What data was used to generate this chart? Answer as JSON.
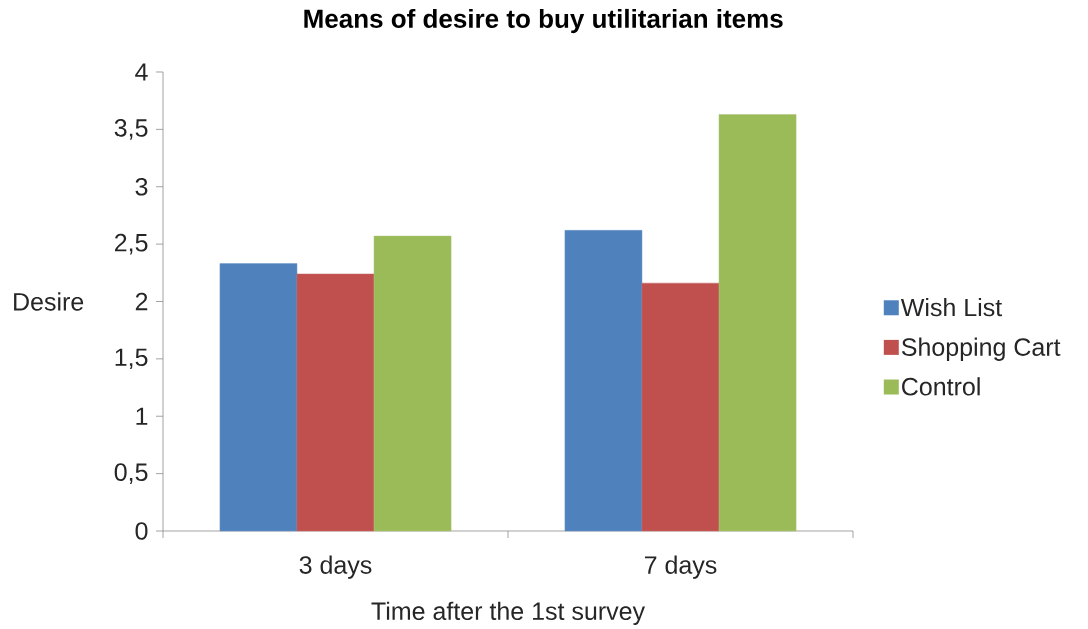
{
  "chart_data": {
    "type": "bar",
    "title": "Means of desire to buy utilitarian items",
    "xlabel": "Time after the 1st survey",
    "ylabel": "Desire",
    "categories": [
      "3 days",
      "7 days"
    ],
    "series": [
      {
        "name": "Wish List",
        "color": "#4f81bd",
        "values": [
          2.33,
          2.62
        ]
      },
      {
        "name": "Shopping Cart",
        "color": "#c0504d",
        "values": [
          2.24,
          2.16
        ]
      },
      {
        "name": "Control",
        "color": "#9bbb59",
        "values": [
          2.57,
          3.63
        ]
      }
    ],
    "ylim": [
      0,
      4
    ],
    "yticks": [
      0,
      {
        "value": 0.5,
        "label": "0,5"
      },
      1,
      {
        "value": 1.5,
        "label": "1,5"
      },
      2,
      {
        "value": 2.5,
        "label": "2,5"
      },
      3,
      {
        "value": 3.5,
        "label": "3,5"
      },
      4
    ],
    "legend": "right"
  }
}
